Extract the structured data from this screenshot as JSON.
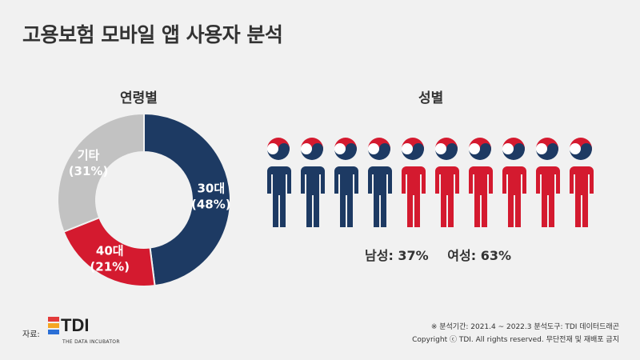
{
  "title": "고용보험 모바일 앱 사용자 분석",
  "donut_title": "연령별",
  "gender_title": "성별",
  "chart_data": [
    {
      "type": "pie",
      "title": "연령별",
      "labels": [
        "30대",
        "40대",
        "기타"
      ],
      "values": [
        48,
        21,
        31
      ],
      "colors": [
        "#1d3a63",
        "#d41a2f",
        "#c2c2c2"
      ],
      "hole": true
    },
    {
      "type": "bar",
      "title": "성별",
      "categories": [
        "남성",
        "여성"
      ],
      "values": [
        37,
        63
      ],
      "colors": [
        "#1d3a63",
        "#d41a2f"
      ],
      "icons_total": 10,
      "icons": [
        4,
        6
      ]
    }
  ],
  "gender_summary": [
    "남성: 37%",
    "여성: 63%"
  ],
  "source_label": "자료:",
  "logo": {
    "text": "TDI",
    "subtitle": "THE DATA INCUBATOR",
    "colors": [
      "#e33b3b",
      "#f5a623",
      "#2b6fd6"
    ]
  },
  "meta_period": "※ 분석기간: 2021.4 ~ 2022.3   분석도구: TDI 데이터드래곤",
  "meta_copyright": "Copyright ⓒ TDI. All rights reserved. 무단전재 및 재배포 금지"
}
